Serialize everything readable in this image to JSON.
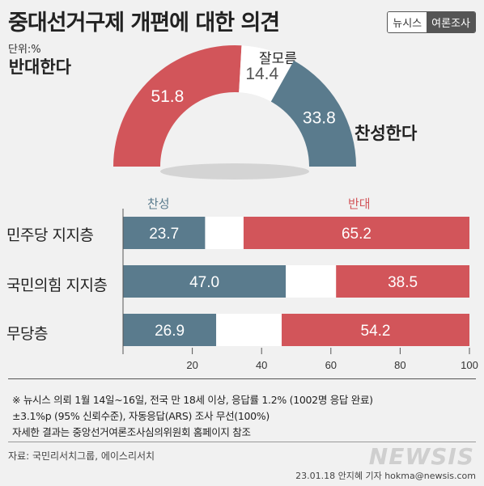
{
  "header": {
    "title": "중대선거구제 개편에 대한 의견",
    "brand_left": "뉴시스",
    "brand_right": "여론조사",
    "unit": "단위:%"
  },
  "chart_data": [
    {
      "type": "pie",
      "subtype": "half-donut",
      "slices": [
        {
          "label": "반대한다",
          "value": 51.8,
          "color": "#d2555a"
        },
        {
          "label": "잘모름",
          "value": 14.4,
          "color": "#ffffff"
        },
        {
          "label": "찬성한다",
          "value": 33.8,
          "color": "#5a7b8d"
        }
      ]
    },
    {
      "type": "bar",
      "orientation": "horizontal",
      "stacked": true,
      "categories": [
        "민주당 지지층",
        "국민의힘 지지층",
        "무당층"
      ],
      "series": [
        {
          "name": "찬성",
          "values": [
            23.7,
            47.0,
            26.9
          ],
          "labels": [
            "23.7",
            "47.0",
            "26.9"
          ],
          "color": "#5a7b8d"
        },
        {
          "name": "",
          "values": [
            11.1,
            14.5,
            18.9
          ],
          "color": "#ffffff"
        },
        {
          "name": "반대",
          "values": [
            65.2,
            38.5,
            54.2
          ],
          "labels": [
            "65.2",
            "38.5",
            "54.2"
          ],
          "color": "#d2555a"
        }
      ],
      "xlim": [
        0,
        100
      ],
      "xticks": [
        20,
        40,
        60,
        80,
        100
      ],
      "grid": false
    }
  ],
  "footer": {
    "notes": [
      "※ 뉴시스 의뢰 1월 14일~16일, 전국 만 18세 이상, 응답률 1.2% (1002명 응답 완료)",
      "±3.1%p (95% 신뢰수준), 자동응답(ARS) 조사 무선(100%)",
      "자세한 결과는 중앙선거여론조사심의위원회 홈페이지 참조"
    ],
    "source": "자료: 국민리서치그룹, 에이스리서치",
    "credit": "23.01.18 안지혜 기자 hokma@newsis.com",
    "watermark": "NEWSIS"
  }
}
